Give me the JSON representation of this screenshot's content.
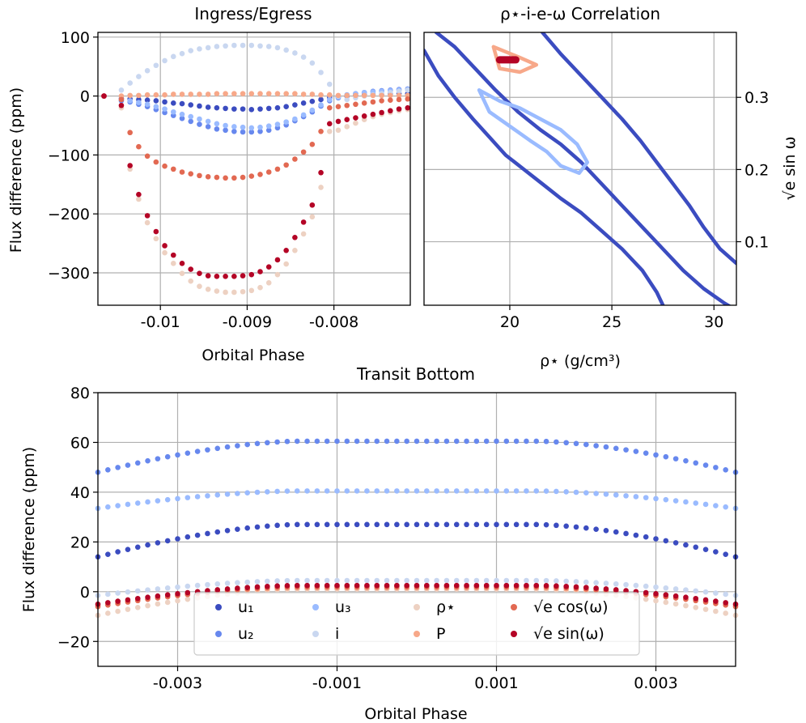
{
  "colors": {
    "u1": "#3b4cc0",
    "u2": "#6788ee",
    "u3": "#9abbff",
    "i": "#c9d7f0",
    "rho": "#edd1c2",
    "P": "#f7a889",
    "ecos": "#e26952",
    "esin": "#b40426"
  },
  "chart_data": [
    {
      "id": "ingress",
      "type": "scatter",
      "title": "Ingress/Egress",
      "xlabel": "Orbital Phase",
      "ylabel": "Flux difference (ppm)",
      "xlim": [
        -0.01072,
        -0.00712
      ],
      "ylim": [
        -355,
        108
      ],
      "xticks": [
        -0.01,
        -0.009,
        -0.008
      ],
      "xtick_labels": [
        "-0.01",
        "-0.009",
        "-0.008"
      ],
      "yticks": [
        100,
        0,
        -100,
        -200,
        -300
      ],
      "ytick_labels": [
        "100",
        "0",
        "−100",
        "−200",
        "−300"
      ],
      "x": [
        -0.01065,
        -0.01045,
        -0.01035,
        -0.01025,
        -0.01015,
        -0.01005,
        -0.00995,
        -0.00985,
        -0.00975,
        -0.00965,
        -0.00955,
        -0.00945,
        -0.00935,
        -0.00925,
        -0.00915,
        -0.00905,
        -0.00895,
        -0.00885,
        -0.00875,
        -0.00865,
        -0.00855,
        -0.00845,
        -0.00835,
        -0.00825,
        -0.00815,
        -0.00805,
        -0.00795,
        -0.00785,
        -0.00775,
        -0.00765,
        -0.00755,
        -0.00745,
        -0.00735,
        -0.00725,
        -0.00715
      ],
      "series": [
        {
          "key": "u1",
          "name": "u₁",
          "values": [
            0,
            -4,
            -5,
            -6,
            -7,
            -8,
            -10,
            -12,
            -13,
            -15,
            -17,
            -19,
            -20,
            -21,
            -22,
            -22,
            -23,
            -22,
            -21,
            -20,
            -18,
            -15,
            -12,
            -9,
            -6,
            -3,
            -1,
            0,
            1,
            2,
            3,
            3,
            4,
            4,
            4
          ]
        },
        {
          "key": "u2",
          "name": "u₂",
          "values": [
            0,
            -8,
            -10,
            -14,
            -18,
            -23,
            -28,
            -33,
            -38,
            -43,
            -48,
            -52,
            -56,
            -58,
            -60,
            -61,
            -61,
            -60,
            -58,
            -54,
            -49,
            -42,
            -35,
            -27,
            -17,
            -8,
            -3,
            2,
            4,
            6,
            8,
            9,
            10,
            11,
            12
          ]
        },
        {
          "key": "u3",
          "name": "u₃",
          "values": [
            0,
            -6,
            -8,
            -11,
            -14,
            -18,
            -22,
            -27,
            -31,
            -35,
            -39,
            -43,
            -47,
            -50,
            -52,
            -53,
            -54,
            -53,
            -51,
            -48,
            -44,
            -39,
            -32,
            -24,
            -15,
            -6,
            -2,
            2,
            4,
            6,
            7,
            8,
            9,
            10,
            11
          ]
        },
        {
          "key": "i",
          "name": "i",
          "values": [
            0,
            10,
            22,
            33,
            43,
            52,
            60,
            67,
            72,
            77,
            80,
            82,
            84,
            85,
            86,
            86,
            86,
            85,
            84,
            82,
            78,
            73,
            66,
            56,
            40,
            20,
            0,
            -6,
            -3,
            0,
            2,
            4,
            6,
            8,
            10
          ]
        },
        {
          "key": "rho",
          "name": "ρ⋆",
          "values": [
            0,
            -20,
            -124,
            -175,
            -215,
            -242,
            -266,
            -284,
            -301,
            -314,
            -323,
            -328,
            -331,
            -333,
            -333,
            -332,
            -330,
            -325,
            -317,
            -303,
            -285,
            -262,
            -234,
            -205,
            -155,
            -60,
            -58,
            -52,
            -46,
            -40,
            -35,
            -31,
            -28,
            -25,
            -23
          ]
        },
        {
          "key": "P",
          "name": "P",
          "values": [
            0,
            0,
            1,
            1,
            2,
            2,
            2,
            3,
            3,
            3,
            3,
            3,
            4,
            4,
            4,
            4,
            4,
            4,
            4,
            4,
            4,
            4,
            3,
            3,
            2,
            2,
            1,
            1,
            1,
            1,
            1,
            1,
            1,
            1,
            1
          ]
        },
        {
          "key": "ecos",
          "name": "√e cos(ω)",
          "values": [
            0,
            -6,
            -62,
            -86,
            -102,
            -112,
            -119,
            -124,
            -129,
            -132,
            -135,
            -137,
            -138,
            -139,
            -139,
            -138,
            -136,
            -133,
            -129,
            -124,
            -117,
            -107,
            -95,
            -82,
            -60,
            -20,
            -18,
            -16,
            -14,
            -12,
            -10,
            -8,
            -7,
            -6,
            -5
          ]
        },
        {
          "key": "esin",
          "name": "√e sin(ω)",
          "values": [
            0,
            -16,
            -118,
            -167,
            -203,
            -230,
            -254,
            -270,
            -284,
            -294,
            -301,
            -305,
            -306,
            -306,
            -306,
            -305,
            -303,
            -298,
            -290,
            -278,
            -262,
            -240,
            -214,
            -185,
            -130,
            -47,
            -43,
            -40,
            -37,
            -34,
            -31,
            -28,
            -25,
            -22,
            -20
          ]
        }
      ]
    },
    {
      "id": "contour",
      "type": "contour",
      "title": "ρ⋆-i-e-ω Correlation",
      "xlabel": "ρ⋆ (g/cm³)",
      "ylabel": "√e sin ω",
      "xlim": [
        15.8,
        31.1
      ],
      "ylim": [
        0.012,
        0.39
      ],
      "xticks": [
        20,
        25,
        30
      ],
      "xtick_labels": [
        "20",
        "25",
        "30"
      ],
      "yticks": [
        0.3,
        0.2,
        0.1
      ],
      "ytick_labels": [
        "0.3",
        "0.2",
        "0.1"
      ],
      "contours": [
        {
          "level": "outer",
          "color": "#3b4cc0",
          "points": [
            [
              16.4,
              0.39
            ],
            [
              17.3,
              0.37
            ],
            [
              18.3,
              0.34
            ],
            [
              19.3,
              0.31
            ],
            [
              20.4,
              0.28
            ],
            [
              21.5,
              0.255
            ],
            [
              22.5,
              0.235
            ],
            [
              23.5,
              0.21
            ],
            [
              24.5,
              0.18
            ],
            [
              25.5,
              0.15
            ],
            [
              26.5,
              0.12
            ],
            [
              27.5,
              0.09
            ],
            [
              28.5,
              0.06
            ],
            [
              29.5,
              0.035
            ],
            [
              30.5,
              0.015
            ],
            [
              31.1,
              0.005
            ]
          ]
        },
        {
          "level": "outer",
          "color": "#3b4cc0",
          "points": [
            [
              31.1,
              0.07
            ],
            [
              30.3,
              0.09
            ],
            [
              29.5,
              0.12
            ],
            [
              28.8,
              0.15
            ],
            [
              28,
              0.18
            ],
            [
              27.2,
              0.21
            ],
            [
              26.4,
              0.24
            ],
            [
              25.5,
              0.27
            ],
            [
              24.5,
              0.3
            ],
            [
              23.5,
              0.33
            ],
            [
              22.5,
              0.36
            ],
            [
              21.6,
              0.39
            ]
          ]
        },
        {
          "level": "outer",
          "color": "#3b4cc0",
          "points": [
            [
              15.8,
              0.365
            ],
            [
              16.5,
              0.33
            ],
            [
              17.3,
              0.3
            ],
            [
              18.2,
              0.27
            ],
            [
              19,
              0.245
            ],
            [
              19.8,
              0.22
            ],
            [
              20.7,
              0.2
            ],
            [
              21.6,
              0.18
            ],
            [
              22.5,
              0.16
            ],
            [
              23.5,
              0.14
            ],
            [
              24.5,
              0.115
            ],
            [
              25.5,
              0.09
            ],
            [
              26.5,
              0.06
            ],
            [
              27.2,
              0.03
            ],
            [
              27.5,
              0.012
            ]
          ]
        },
        {
          "level": "inner",
          "color": "#9abbff",
          "points": [
            [
              18.5,
              0.31
            ],
            [
              19.5,
              0.295
            ],
            [
              20.5,
              0.285
            ],
            [
              21.5,
              0.27
            ],
            [
              22.5,
              0.255
            ],
            [
              23.3,
              0.235
            ],
            [
              23.8,
              0.21
            ],
            [
              23.4,
              0.195
            ],
            [
              22.5,
              0.205
            ],
            [
              21.8,
              0.225
            ],
            [
              21,
              0.24
            ],
            [
              20,
              0.26
            ],
            [
              19,
              0.28
            ],
            [
              18.5,
              0.31
            ]
          ]
        },
        {
          "level": "core",
          "color": "#f7a889",
          "points": [
            [
              19.2,
              0.37
            ],
            [
              20.5,
              0.355
            ],
            [
              21.3,
              0.345
            ],
            [
              20.5,
              0.335
            ],
            [
              19.5,
              0.34
            ],
            [
              19.2,
              0.37
            ]
          ]
        },
        {
          "level": "peak",
          "color": "#b40426",
          "points": [
            [
              19.5,
              0.352
            ],
            [
              20.3,
              0.352
            ]
          ]
        }
      ]
    },
    {
      "id": "bottom",
      "type": "scatter",
      "title": "Transit Bottom",
      "xlabel": "Orbital Phase",
      "ylabel": "Flux difference (ppm)",
      "xlim": [
        -0.004,
        0.004
      ],
      "ylim": [
        -30,
        80
      ],
      "xticks": [
        -0.003,
        -0.001,
        0.001,
        0.003
      ],
      "xtick_labels": [
        "-0.003",
        "-0.001",
        "0.001",
        "0.003"
      ],
      "yticks": [
        80,
        60,
        40,
        20,
        0,
        -20
      ],
      "ytick_labels": [
        "80",
        "60",
        "40",
        "20",
        "0",
        "−20"
      ],
      "series": [
        {
          "key": "u1",
          "edge": 14,
          "peak": 27
        },
        {
          "key": "u2",
          "edge": 48,
          "peak": 60.5
        },
        {
          "key": "u3",
          "edge": 33.5,
          "peak": 40.5
        },
        {
          "key": "i",
          "edge": -1.5,
          "peak": 4.5
        },
        {
          "key": "rho",
          "edge": -9.5,
          "peak": 1
        },
        {
          "key": "P",
          "edge": -5.5,
          "peak": 1.5
        },
        {
          "key": "ecos",
          "edge": -6,
          "peak": 2
        },
        {
          "key": "esin",
          "edge": -5,
          "peak": 2.5
        }
      ],
      "legend": {
        "position": "lower-center",
        "entries": [
          {
            "key": "u1",
            "label": "u₁"
          },
          {
            "key": "u3",
            "label": "u₃"
          },
          {
            "key": "rho",
            "label": "ρ⋆"
          },
          {
            "key": "ecos",
            "label": "√e cos(ω)"
          },
          {
            "key": "u2",
            "label": "u₂"
          },
          {
            "key": "i",
            "label": "i"
          },
          {
            "key": "P",
            "label": "P"
          },
          {
            "key": "esin",
            "label": "√e sin(ω)"
          }
        ]
      }
    }
  ]
}
